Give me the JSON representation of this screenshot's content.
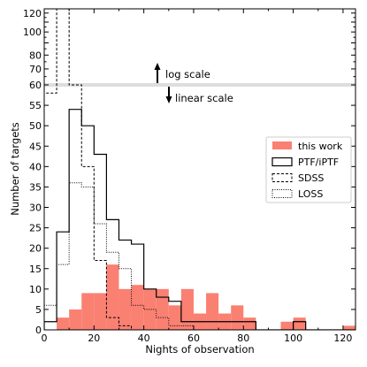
{
  "chart_data": {
    "type": "bar",
    "subtype": "step-histogram",
    "xlabel": "Nights of observation",
    "ylabel": "Number of targets",
    "xlim": [
      0,
      125
    ],
    "x_ticks": [
      0,
      20,
      40,
      60,
      80,
      100,
      120
    ],
    "bin_width": 5,
    "bin_edges": [
      0,
      5,
      10,
      15,
      20,
      25,
      30,
      35,
      40,
      45,
      50,
      55,
      60,
      65,
      70,
      75,
      80,
      85,
      90,
      95,
      100,
      105,
      110,
      115,
      120,
      125
    ],
    "y_scale": {
      "linear_range": [
        0,
        60
      ],
      "linear_ticks": [
        0,
        5,
        10,
        15,
        20,
        25,
        30,
        35,
        40,
        45,
        50,
        55,
        60
      ],
      "log_range": [
        60,
        125
      ],
      "log_ticks": [
        60,
        70,
        80,
        90,
        100,
        110,
        120
      ],
      "log_tick_labels": [
        "60",
        "70",
        "80",
        "",
        "100",
        "",
        "120"
      ],
      "log_minor_ticks": [
        65,
        75,
        85,
        95,
        105,
        115
      ],
      "break_at": 60
    },
    "annotations": {
      "log": "log scale",
      "linear": "linear scale"
    },
    "legend_position": "right",
    "series": [
      {
        "name": "this work",
        "style": "filled",
        "color": "#fa8072",
        "values": [
          0,
          3,
          5,
          9,
          9,
          16,
          10,
          11,
          10,
          10,
          6,
          10,
          4,
          9,
          4,
          6,
          3,
          0,
          0,
          2,
          3,
          0,
          0,
          0,
          1
        ]
      },
      {
        "name": "PTF/iPTF",
        "style": "solid",
        "color": "#000000",
        "values": [
          2,
          24,
          54,
          50,
          43,
          27,
          22,
          21,
          10,
          8,
          7,
          2,
          2,
          2,
          2,
          2,
          2,
          0,
          0,
          0,
          2,
          0,
          0,
          0,
          0
        ]
      },
      {
        "name": "SDSS",
        "style": "dashed",
        "color": "#000000",
        "values": [
          58,
          125,
          60,
          40,
          17,
          3,
          1,
          0,
          0,
          0,
          0,
          0,
          0,
          0,
          0,
          0,
          0,
          0,
          0,
          0,
          0,
          0,
          0,
          0,
          0
        ]
      },
      {
        "name": "LOSS",
        "style": "dotted",
        "color": "#000000",
        "values": [
          6,
          16,
          36,
          35,
          26,
          19,
          15,
          6,
          5,
          3,
          1,
          1,
          0,
          0,
          0,
          0,
          0,
          0,
          0,
          0,
          0,
          0,
          0,
          0,
          0
        ]
      }
    ]
  }
}
